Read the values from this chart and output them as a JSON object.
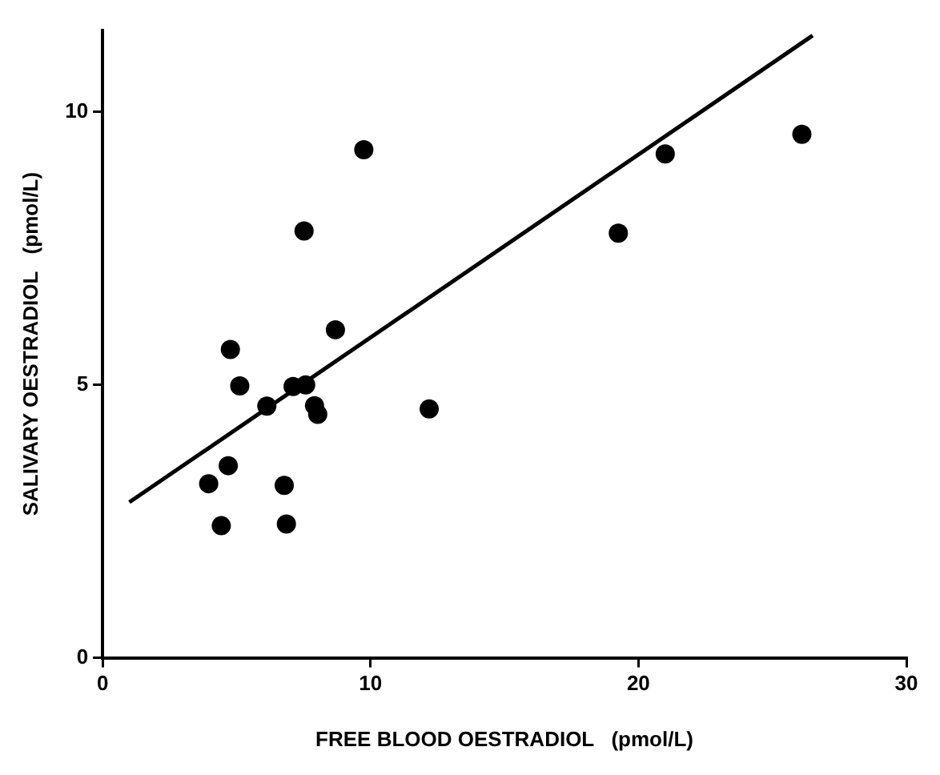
{
  "chart_data": {
    "type": "scatter",
    "xlabel": "FREE BLOOD OESTRADIOL   (pmol/L)",
    "ylabel": "SALIVARY OESTRADIOL   (pmol/L)",
    "xlim": [
      0,
      30
    ],
    "xticks": [
      0,
      10,
      20,
      30
    ],
    "ylim": [
      0,
      11.5
    ],
    "yticks": [
      0,
      5,
      10
    ],
    "grid": false,
    "legend": false,
    "marker": "circle",
    "series": [
      {
        "color": "#000000",
        "x": [
          9.75,
          7.52,
          8.69,
          4.77,
          5.12,
          6.13,
          7.11,
          7.58,
          7.91,
          8.03,
          12.19,
          4.69,
          3.96,
          6.78,
          4.43,
          6.86,
          19.25,
          21.0,
          26.1
        ],
        "values": [
          9.31,
          7.82,
          6.01,
          5.65,
          4.98,
          4.61,
          4.97,
          5.0,
          4.62,
          4.46,
          4.56,
          3.52,
          3.19,
          3.16,
          2.42,
          2.45,
          7.78,
          9.23,
          9.59
        ]
      },
      {
        "type": "line",
        "marker": "none",
        "color": "#000000",
        "x": [
          1,
          26.5
        ],
        "values": [
          2.85,
          11.4
        ]
      }
    ]
  }
}
